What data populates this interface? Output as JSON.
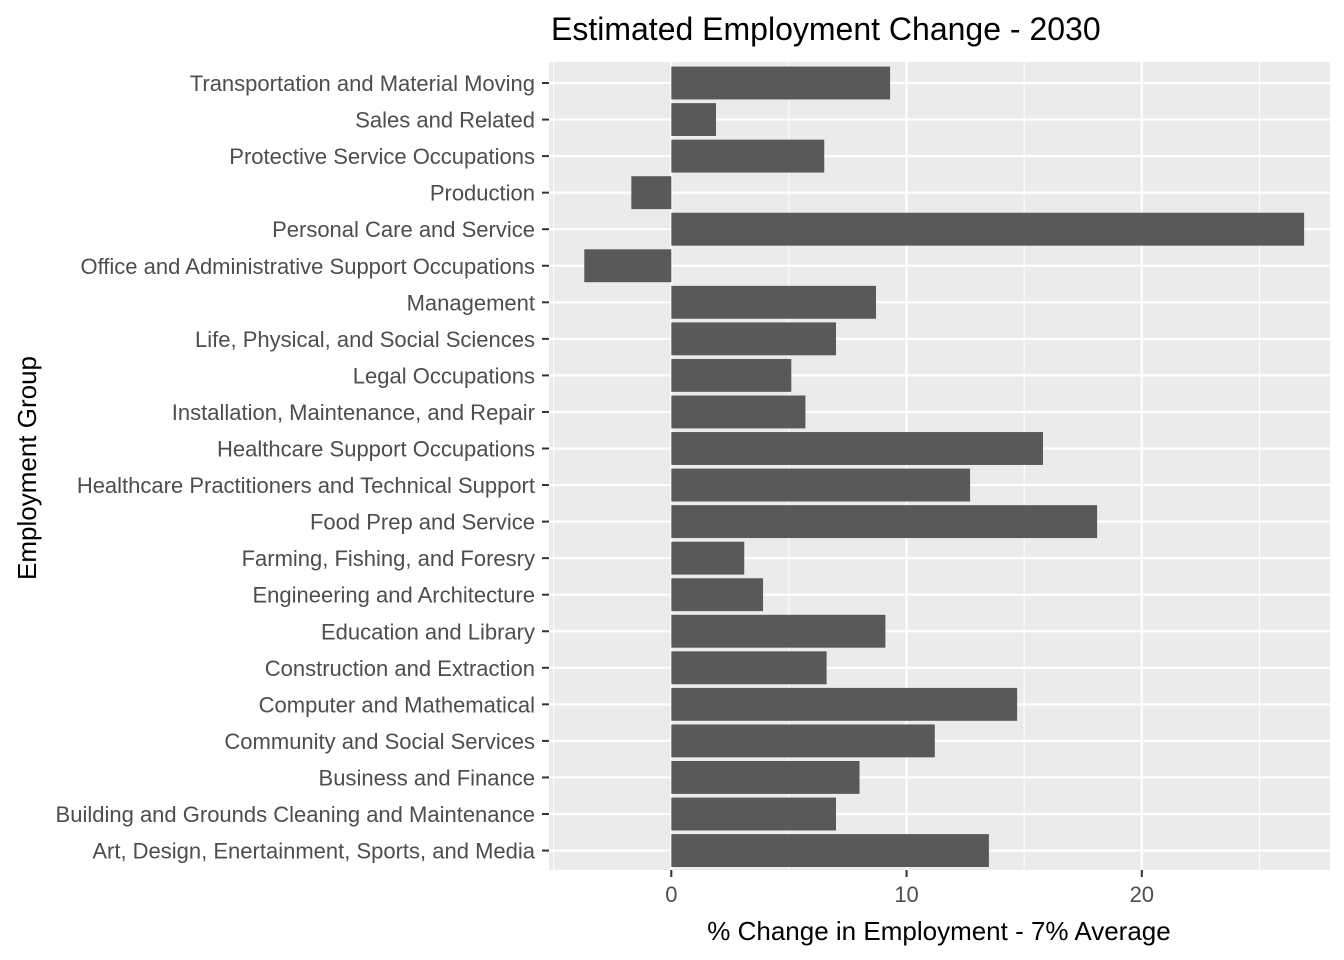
{
  "chart_data": {
    "type": "bar",
    "orientation": "horizontal",
    "title": "Estimated Employment Change - 2030",
    "xlabel": "% Change in Employment - 7% Average",
    "ylabel": "Employment Group",
    "xlim": [
      -5.2,
      28.0
    ],
    "xticks": [
      0,
      10,
      20
    ],
    "xtick_labels": [
      "0",
      "10",
      "20"
    ],
    "grid": true,
    "bar_color": "#595959",
    "panel_color": "#ebebeb",
    "grid_color": "#ffffff",
    "categories": [
      "Transportation and Material Moving",
      "Sales and Related",
      "Protective Service Occupations",
      "Production",
      "Personal Care and Service",
      "Office and Administrative Support Occupations",
      "Management",
      "Life, Physical, and Social Sciences",
      "Legal Occupations",
      "Installation, Maintenance, and Repair",
      "Healthcare Support Occupations",
      "Healthcare Practitioners and Technical Support",
      "Food Prep and Service",
      "Farming, Fishing, and Foresry",
      "Engineering and Architecture",
      "Education and Library",
      "Construction and Extraction",
      "Computer and Mathematical",
      "Community and Social Services",
      "Business and Finance",
      "Building and Grounds Cleaning and Maintenance",
      "Art, Design, Enertainment, Sports, and Media"
    ],
    "values": [
      9.3,
      1.9,
      6.5,
      -1.7,
      26.9,
      -3.7,
      8.7,
      7.0,
      5.1,
      5.7,
      15.8,
      12.7,
      18.1,
      3.1,
      3.9,
      9.1,
      6.6,
      14.7,
      11.2,
      8.0,
      7.0,
      13.5
    ]
  }
}
